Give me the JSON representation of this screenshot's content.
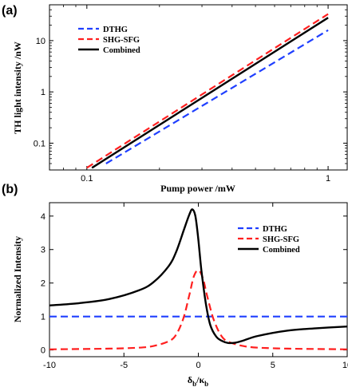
{
  "chart_data": [
    {
      "panel_label": "(a)",
      "type": "line",
      "xlabel": "Pump power /mW",
      "ylabel": "TH light intensity /nW",
      "xscale": "log",
      "yscale": "log",
      "xlim": [
        0.07,
        1.2
      ],
      "ylim": [
        0.03,
        50
      ],
      "xticks": [
        {
          "value": 0.1,
          "label": "0.1"
        },
        {
          "value": 1,
          "label": "1"
        }
      ],
      "yticks": [
        {
          "value": 0.1,
          "label": "0.1"
        },
        {
          "value": 1,
          "label": "1"
        },
        {
          "value": 10,
          "label": "10"
        }
      ],
      "grid": false,
      "legend": "top-left",
      "series": [
        {
          "name": "DTHG",
          "color": "#1f3fff",
          "dash": "dashed",
          "x": [
            0.12,
            1
          ],
          "y": [
            0.04,
            16
          ]
        },
        {
          "name": "SHG-SFG",
          "color": "#ff1f1f",
          "dash": "dashed",
          "x": [
            0.1,
            1
          ],
          "y": [
            0.033,
            33
          ]
        },
        {
          "name": "Combined",
          "color": "#000000",
          "dash": "solid",
          "x": [
            0.105,
            1
          ],
          "y": [
            0.033,
            28
          ]
        }
      ]
    },
    {
      "panel_label": "(b)",
      "type": "line",
      "xlabel_main": "δ",
      "xlabel_sub1": "b",
      "xlabel_mid": "/κ",
      "xlabel_sub2": "b",
      "ylabel": "Normalized Intensity",
      "xlim": [
        -10,
        10
      ],
      "ylim": [
        -0.2,
        4.4
      ],
      "xticks": [
        {
          "value": -10,
          "label": "-10"
        },
        {
          "value": -5,
          "label": "-5"
        },
        {
          "value": 0,
          "label": "0"
        },
        {
          "value": 5,
          "label": "5"
        },
        {
          "value": 10,
          "label": "10"
        }
      ],
      "yticks": [
        {
          "value": 0,
          "label": "0"
        },
        {
          "value": 1,
          "label": "1"
        },
        {
          "value": 2,
          "label": "2"
        },
        {
          "value": 3,
          "label": "3"
        },
        {
          "value": 4,
          "label": "4"
        }
      ],
      "grid": false,
      "legend": "top-right",
      "series": [
        {
          "name": "DTHG",
          "color": "#1f3fff",
          "dash": "dashed",
          "x": [
            -10,
            10
          ],
          "y": [
            1,
            1
          ]
        },
        {
          "name": "SHG-SFG",
          "color": "#ff1f1f",
          "dash": "dashed",
          "x": [
            -10,
            -6,
            -4,
            -3,
            -2,
            -1.5,
            -1,
            -0.6,
            -0.3,
            0,
            0.3,
            0.6,
            1,
            1.5,
            2,
            3,
            4,
            6,
            8,
            10
          ],
          "y": [
            0.02,
            0.04,
            0.07,
            0.12,
            0.26,
            0.45,
            0.95,
            1.65,
            2.2,
            2.38,
            2.15,
            1.6,
            0.95,
            0.45,
            0.25,
            0.12,
            0.07,
            0.04,
            0.03,
            0.02
          ]
        },
        {
          "name": "Combined",
          "color": "#000000",
          "dash": "solid",
          "x": [
            -10,
            -8,
            -6,
            -4,
            -3,
            -2,
            -1.5,
            -1,
            -0.6,
            -0.4,
            -0.2,
            0,
            0.2,
            0.5,
            0.8,
            1.2,
            1.6,
            2,
            2.5,
            3,
            4,
            6,
            8,
            10
          ],
          "y": [
            1.33,
            1.4,
            1.52,
            1.78,
            2.03,
            2.5,
            2.92,
            3.55,
            4.05,
            4.2,
            4.0,
            3.3,
            2.4,
            1.4,
            0.75,
            0.4,
            0.27,
            0.21,
            0.22,
            0.28,
            0.42,
            0.58,
            0.65,
            0.7
          ]
        }
      ]
    }
  ]
}
